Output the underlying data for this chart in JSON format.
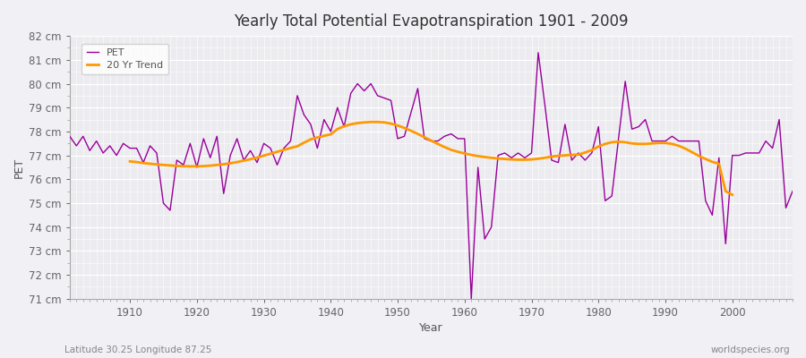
{
  "title": "Yearly Total Potential Evapotranspiration 1901 - 2009",
  "xlabel": "Year",
  "ylabel": "PET",
  "subtitle_left": "Latitude 30.25 Longitude 87.25",
  "subtitle_right": "worldspecies.org",
  "pet_color": "#990099",
  "trend_color": "#ff9900",
  "background_color": "#f0f0f5",
  "plot_bg_color": "#ebebf0",
  "ylim_min": 71,
  "ylim_max": 82,
  "xlim_min": 1901,
  "xlim_max": 2009,
  "years": [
    1901,
    1902,
    1903,
    1904,
    1905,
    1906,
    1907,
    1908,
    1909,
    1910,
    1911,
    1912,
    1913,
    1914,
    1915,
    1916,
    1917,
    1918,
    1919,
    1920,
    1921,
    1922,
    1923,
    1924,
    1925,
    1926,
    1927,
    1928,
    1929,
    1930,
    1931,
    1932,
    1933,
    1934,
    1935,
    1936,
    1937,
    1938,
    1939,
    1940,
    1941,
    1942,
    1943,
    1944,
    1945,
    1946,
    1947,
    1948,
    1949,
    1950,
    1951,
    1952,
    1953,
    1954,
    1955,
    1956,
    1957,
    1958,
    1959,
    1960,
    1961,
    1962,
    1963,
    1964,
    1965,
    1966,
    1967,
    1968,
    1969,
    1970,
    1971,
    1972,
    1973,
    1974,
    1975,
    1976,
    1977,
    1978,
    1979,
    1980,
    1981,
    1982,
    1983,
    1984,
    1985,
    1986,
    1987,
    1988,
    1989,
    1990,
    1991,
    1992,
    1993,
    1994,
    1995,
    1996,
    1997,
    1998,
    1999,
    2000,
    2001,
    2002,
    2003,
    2004,
    2005,
    2006,
    2007,
    2008,
    2009
  ],
  "pet_values": [
    77.8,
    77.4,
    77.8,
    77.2,
    77.6,
    77.1,
    77.4,
    77.0,
    77.5,
    77.3,
    77.3,
    76.7,
    77.4,
    77.1,
    75.0,
    74.7,
    76.8,
    76.6,
    77.5,
    76.5,
    77.7,
    76.9,
    77.8,
    75.4,
    77.0,
    77.7,
    76.8,
    77.2,
    76.7,
    77.5,
    77.3,
    76.6,
    77.3,
    77.6,
    79.5,
    78.7,
    78.3,
    77.3,
    78.5,
    78.0,
    79.0,
    78.2,
    79.6,
    80.0,
    79.7,
    80.0,
    79.5,
    79.4,
    79.3,
    77.7,
    77.8,
    78.8,
    79.8,
    77.7,
    77.6,
    77.6,
    77.8,
    77.9,
    77.7,
    77.7,
    71.0,
    76.5,
    73.5,
    74.0,
    77.0,
    77.1,
    76.9,
    77.1,
    76.9,
    77.1,
    81.3,
    79.1,
    76.8,
    76.7,
    78.3,
    76.8,
    77.1,
    76.8,
    77.1,
    78.2,
    75.1,
    75.3,
    77.7,
    80.1,
    78.1,
    78.2,
    78.5,
    77.6,
    77.6,
    77.6,
    77.8,
    77.6,
    77.6,
    77.6,
    77.6,
    75.1,
    74.5,
    76.9,
    73.3,
    77.0,
    77.0,
    77.1,
    77.1,
    77.1,
    77.6,
    77.3,
    78.5,
    74.8,
    75.5
  ],
  "trend_years": [
    1910,
    1911,
    1912,
    1913,
    1914,
    1915,
    1916,
    1917,
    1918,
    1919,
    1920,
    1921,
    1922,
    1923,
    1924,
    1925,
    1926,
    1927,
    1928,
    1929,
    1930,
    1931,
    1932,
    1933,
    1934,
    1935,
    1936,
    1937,
    1938,
    1939,
    1940,
    1941,
    1942,
    1943,
    1944,
    1945,
    1946,
    1947,
    1948,
    1949,
    1950,
    1951,
    1952,
    1953,
    1954,
    1955,
    1956,
    1957,
    1958,
    1959,
    1960,
    1961,
    1962,
    1963,
    1964,
    1965,
    1966,
    1967,
    1968,
    1969,
    1970,
    1971,
    1972,
    1973,
    1974,
    1975,
    1976,
    1977,
    1978,
    1979,
    1980,
    1981,
    1982,
    1983,
    1984,
    1985,
    1986,
    1987,
    1988,
    1989,
    1990,
    1991,
    1992,
    1993,
    1994,
    1995,
    1996,
    1997,
    1998,
    1999,
    2000
  ],
  "trend_values": [
    76.75,
    76.72,
    76.68,
    76.65,
    76.62,
    76.6,
    76.58,
    76.56,
    76.55,
    76.54,
    76.54,
    76.55,
    76.57,
    76.6,
    76.63,
    76.67,
    76.72,
    76.78,
    76.84,
    76.91,
    76.99,
    77.07,
    77.15,
    77.23,
    77.31,
    77.38,
    77.53,
    77.67,
    77.75,
    77.82,
    77.88,
    78.1,
    78.22,
    78.3,
    78.35,
    78.38,
    78.4,
    78.4,
    78.38,
    78.33,
    78.25,
    78.15,
    78.03,
    77.9,
    77.76,
    77.62,
    77.48,
    77.35,
    77.23,
    77.15,
    77.08,
    77.02,
    76.97,
    76.93,
    76.9,
    76.87,
    76.85,
    76.83,
    76.82,
    76.82,
    76.83,
    76.86,
    76.9,
    76.95,
    76.98,
    77.0,
    77.02,
    77.03,
    77.12,
    77.22,
    77.37,
    77.48,
    77.55,
    77.57,
    77.55,
    77.5,
    77.48,
    77.48,
    77.5,
    77.52,
    77.52,
    77.48,
    77.4,
    77.28,
    77.13,
    76.98,
    76.85,
    76.73,
    76.65,
    75.5,
    75.35
  ]
}
